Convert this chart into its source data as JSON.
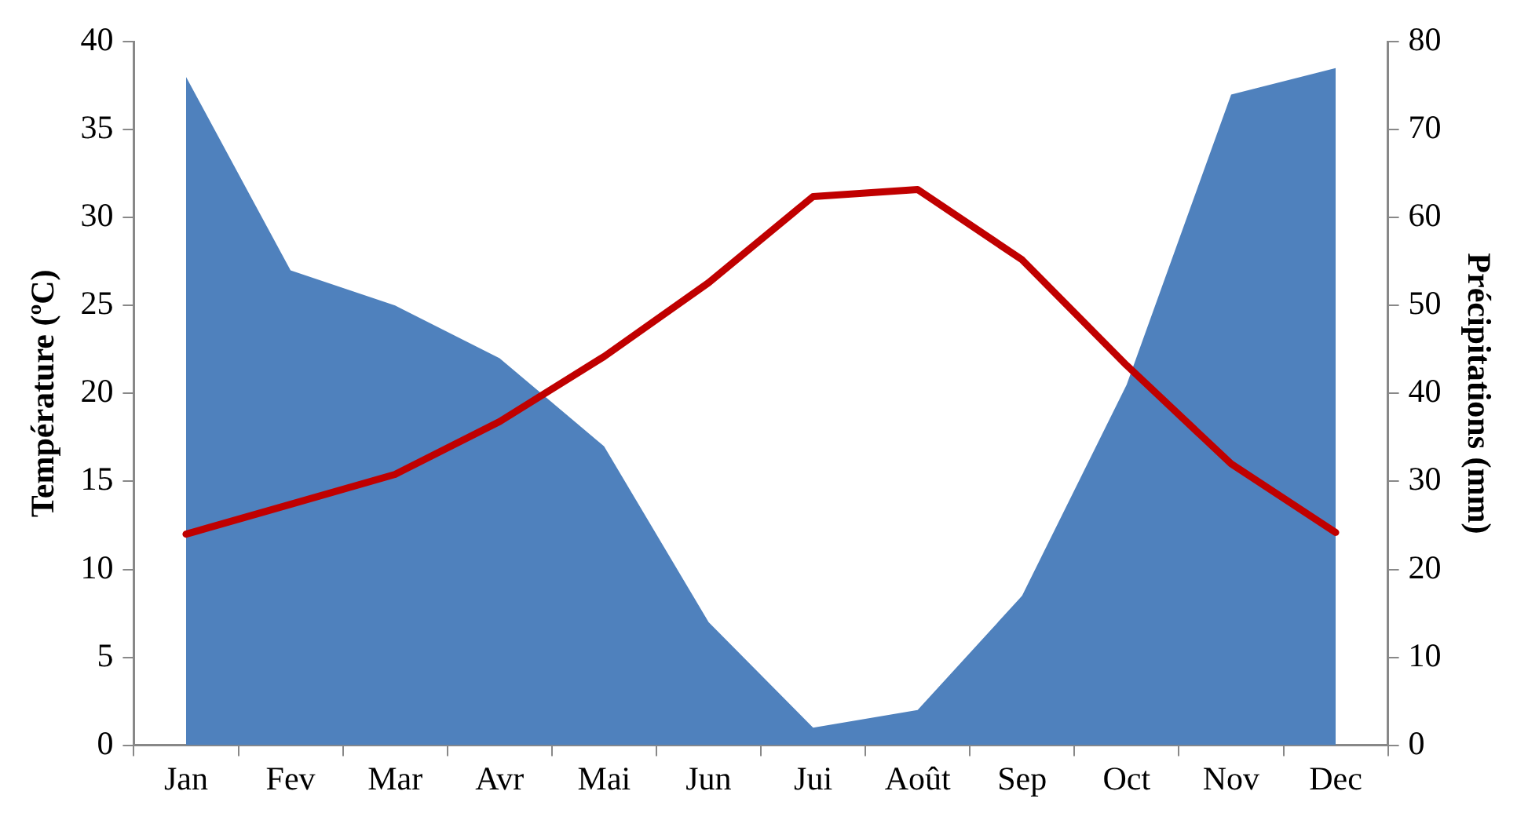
{
  "chart_data": {
    "type": "line",
    "ylabel": "Température (ºC)",
    "y2label": "Précipitations (mm)",
    "categories": [
      "Jan",
      "Fev",
      "Mar",
      "Avr",
      "Mai",
      "Jun",
      "Jui",
      "Août",
      "Sep",
      "Oct",
      "Nov",
      "Dec"
    ],
    "series": [
      {
        "type": "area",
        "axis": "y2",
        "color": "#4f81bd",
        "values": [
          76,
          54,
          50,
          44,
          34,
          14,
          2,
          4,
          17,
          41,
          74,
          77
        ]
      },
      {
        "color": "#c00000",
        "values": [
          12,
          13.7,
          15.4,
          18.4,
          22.1,
          26.3,
          31.2,
          31.6,
          27.6,
          21.6,
          16,
          12.1
        ]
      }
    ],
    "ylim": [
      0,
      40
    ],
    "yticks": [
      0,
      5,
      10,
      15,
      20,
      25,
      30,
      35,
      40
    ],
    "y2lim": [
      0,
      80
    ],
    "y2ticks": [
      0,
      10,
      20,
      30,
      40,
      50,
      60,
      70,
      80
    ],
    "grid": false,
    "legend": false,
    "marker": "none",
    "line_style": "solid"
  }
}
